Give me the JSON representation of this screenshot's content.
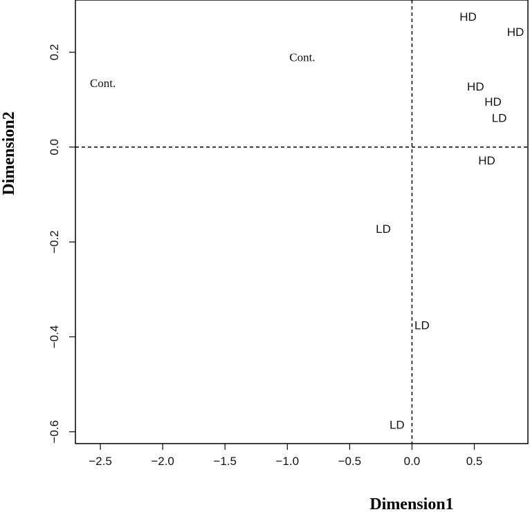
{
  "chart_data": {
    "type": "scatter",
    "title": "",
    "xlabel": "Dimension1",
    "ylabel": "Dimension2",
    "xlim": [
      -2.7,
      0.93
    ],
    "ylim": [
      -0.625,
      0.31
    ],
    "x_ticks": [
      -2.5,
      -2.0,
      -1.5,
      -1.0,
      -0.5,
      0.0,
      0.5
    ],
    "x_tick_labels": [
      "−2.5",
      "−2.0",
      "−1.5",
      "−1.0",
      "−0.5",
      "0.0",
      "0.5"
    ],
    "y_ticks": [
      -0.6,
      -0.4,
      -0.2,
      0.0,
      0.2
    ],
    "y_tick_labels": [
      "−0.6",
      "−0.4",
      "−0.2",
      "0.0",
      "0.2"
    ],
    "reference_lines": {
      "x": 0.0,
      "y": 0.0,
      "style": "dashed"
    },
    "grid": false,
    "legend": "none",
    "points": [
      {
        "label": "Cont.",
        "x": -2.48,
        "y": 0.135
      },
      {
        "label": "Cont.",
        "x": -0.88,
        "y": 0.19
      },
      {
        "label": "HD",
        "x": 0.45,
        "y": 0.275
      },
      {
        "label": "HD",
        "x": 0.83,
        "y": 0.243
      },
      {
        "label": "HD",
        "x": 0.51,
        "y": 0.128
      },
      {
        "label": "HD",
        "x": 0.65,
        "y": 0.096
      },
      {
        "label": "LD",
        "x": 0.7,
        "y": 0.062
      },
      {
        "label": "HD",
        "x": 0.6,
        "y": -0.028
      },
      {
        "label": "LD",
        "x": -0.23,
        "y": -0.172
      },
      {
        "label": "LD",
        "x": 0.08,
        "y": -0.375
      },
      {
        "label": "LD",
        "x": -0.12,
        "y": -0.585
      }
    ]
  }
}
